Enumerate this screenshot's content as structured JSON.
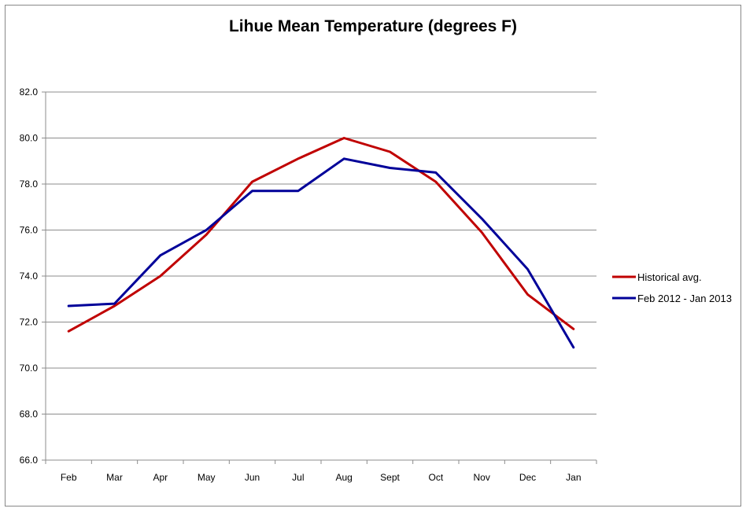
{
  "chart_data": {
    "type": "line",
    "title": "Lihue Mean Temperature (degrees F)",
    "xlabel": "",
    "ylabel": "",
    "categories": [
      "Feb",
      "Mar",
      "Apr",
      "May",
      "Jun",
      "Jul",
      "Aug",
      "Sept",
      "Oct",
      "Nov",
      "Dec",
      "Jan"
    ],
    "ylim": [
      66.0,
      82.0
    ],
    "yticks": [
      "66.0",
      "68.0",
      "70.0",
      "72.0",
      "74.0",
      "76.0",
      "78.0",
      "80.0",
      "82.0"
    ],
    "grid": true,
    "legend_position": "right",
    "series": [
      {
        "name": "Historical avg.",
        "color": "#c00000",
        "values": [
          71.6,
          72.7,
          74.0,
          75.8,
          78.1,
          79.1,
          80.0,
          79.4,
          78.1,
          75.9,
          73.2,
          71.7
        ]
      },
      {
        "name": "Feb 2012 - Jan 2013",
        "color": "#000099",
        "values": [
          72.7,
          72.8,
          74.9,
          76.0,
          77.7,
          77.7,
          79.1,
          78.7,
          78.5,
          76.5,
          74.3,
          70.9
        ]
      }
    ]
  }
}
